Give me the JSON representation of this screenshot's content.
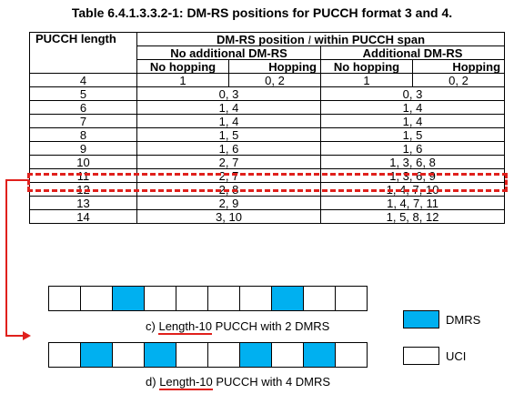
{
  "title": "Table 6.4.1.3.3.2-1: DM-RS positions for PUCCH format 3 and 4.",
  "table": {
    "col_pucch_length": "PUCCH length",
    "col_dmrs_position_pre": "DM-RS position",
    "col_dmrs_position_var": "l",
    "col_dmrs_position_post": "within PUCCH span",
    "group_no_additional": "No additional DM-RS",
    "group_additional": "Additional DM-RS",
    "sub_no_hopping": "No hopping",
    "sub_hopping": "Hopping",
    "sub_no_hopping_2": "No hopping",
    "sub_hopping_2": "Hopping",
    "row4": {
      "length": "4",
      "na_nohop": "1",
      "na_hop": "0, 2",
      "a_nohop": "1",
      "a_hop": "0, 2"
    },
    "rows": [
      {
        "length": "5",
        "no_add": "0, 3",
        "add": "0, 3"
      },
      {
        "length": "6",
        "no_add": "1, 4",
        "add": "1, 4"
      },
      {
        "length": "7",
        "no_add": "1, 4",
        "add": "1, 4"
      },
      {
        "length": "8",
        "no_add": "1, 5",
        "add": "1, 5"
      },
      {
        "length": "9",
        "no_add": "1, 6",
        "add": "1, 6"
      },
      {
        "length": "10",
        "no_add": "2, 7",
        "add": "1, 3, 6, 8"
      },
      {
        "length": "11",
        "no_add": "2, 7",
        "add": "1, 3, 6, 9"
      },
      {
        "length": "12",
        "no_add": "2, 8",
        "add": "1, 4, 7, 10"
      },
      {
        "length": "13",
        "no_add": "2, 9",
        "add": "1, 4, 7, 11"
      },
      {
        "length": "14",
        "no_add": "3, 10",
        "add": "1, 5, 8, 12"
      }
    ]
  },
  "diagram": {
    "caption_c_prefix": "c)",
    "caption_c_highlight": "Length-10",
    "caption_c_suffix": "PUCCH with 2 DMRS",
    "caption_d_prefix": "d)",
    "caption_d_highlight": "Length-10",
    "caption_d_suffix": "PUCCH with 4 DMRS",
    "row_c_dmrs": [
      false,
      false,
      true,
      false,
      false,
      false,
      false,
      true,
      false,
      false
    ],
    "row_d_dmrs": [
      false,
      true,
      false,
      true,
      false,
      false,
      true,
      false,
      true,
      false
    ],
    "dmrs_color": "#00b0f0",
    "highlight_color": "#e0201c",
    "legend_dmrs": "DMRS",
    "legend_uci": "UCI"
  }
}
